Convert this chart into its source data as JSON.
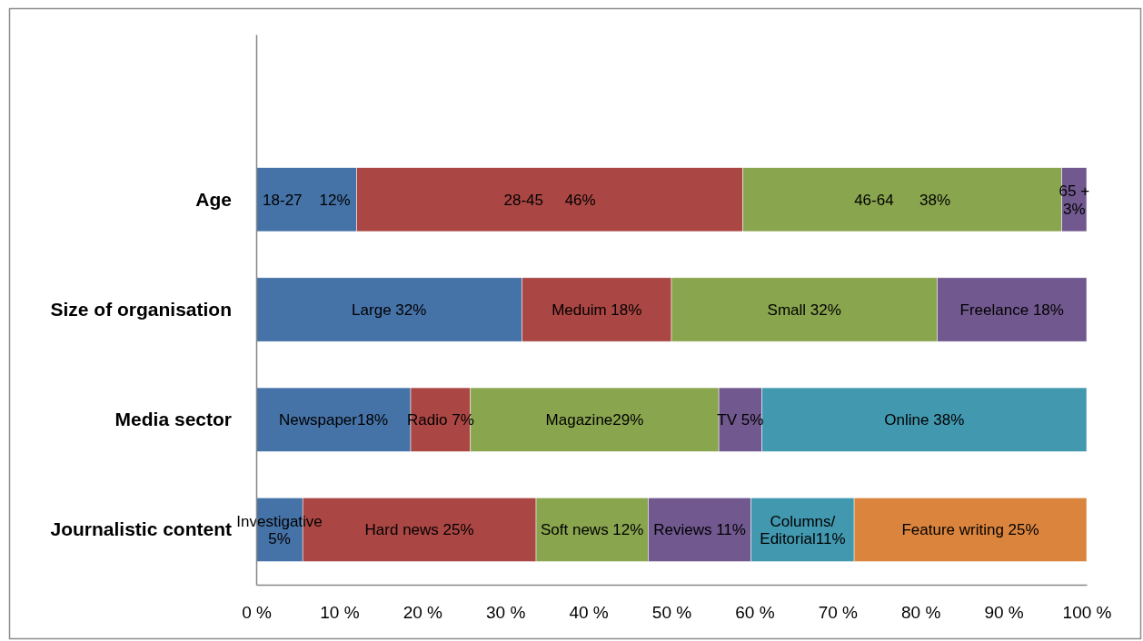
{
  "chart_data": {
    "type": "bar",
    "orientation": "horizontal",
    "stacked": true,
    "categories": [
      null,
      "Age",
      "Size of organisation",
      "Media sector",
      "Journalistic content"
    ],
    "series": [
      {
        "color": "#4572a7",
        "values": [
          null,
          12.1,
          32,
          18.6,
          5.6
        ],
        "value_labels": [
          null,
          "18-27    12%",
          "Large 32%",
          "Newspaper18%",
          "Investigative\n5%"
        ]
      },
      {
        "color": "#aa4643",
        "values": [
          null,
          46.5,
          18,
          7.2,
          28.1
        ],
        "value_labels": [
          null,
          "28-45     46%",
          "Meduim 18%",
          "Radio 7%",
          "Hard news 25%"
        ]
      },
      {
        "color": "#89a54e",
        "values": [
          null,
          38.4,
          32,
          29.9,
          13.5
        ],
        "value_labels": [
          null,
          "46-64      38%",
          "Small 32%",
          "Magazine29%",
          "Soft news 12%"
        ]
      },
      {
        "color": "#71588f",
        "values": [
          null,
          3.0,
          18,
          5.2,
          12.4
        ],
        "value_labels": [
          null,
          "65 +\n3%",
          "Freelance 18%",
          "TV 5%",
          "Reviews 11%"
        ]
      },
      {
        "color": "#4198af",
        "values": [
          null,
          null,
          null,
          39.1,
          12.4
        ],
        "value_labels": [
          null,
          null,
          null,
          "Online 38%",
          "Columns/\nEditorial11%"
        ]
      },
      {
        "color": "#db843d",
        "values": [
          null,
          null,
          null,
          null,
          28.0
        ],
        "value_labels": [
          null,
          null,
          null,
          null,
          "Feature writing 25%"
        ]
      }
    ],
    "xlim": [
      0,
      100
    ],
    "xticks": [
      {
        "value": 0,
        "label": "0 %"
      },
      {
        "value": 10,
        "label": "10 %"
      },
      {
        "value": 20,
        "label": "20 %"
      },
      {
        "value": 30,
        "label": "30 %"
      },
      {
        "value": 40,
        "label": "40 %"
      },
      {
        "value": 50,
        "label": "50 %"
      },
      {
        "value": 60,
        "label": "60 %"
      },
      {
        "value": 70,
        "label": "70 %"
      },
      {
        "value": 80,
        "label": "80 %"
      },
      {
        "value": 90,
        "label": "90 %"
      },
      {
        "value": 100,
        "label": "100 %"
      }
    ]
  }
}
